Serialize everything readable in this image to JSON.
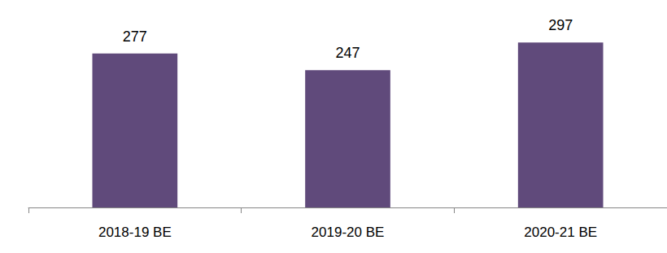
{
  "chart_data": {
    "type": "bar",
    "categories": [
      "2018-19 BE",
      "2019-20 BE",
      "2020-21 BE"
    ],
    "values": [
      277,
      247,
      297
    ],
    "color": "#604a7b",
    "ylim": [
      0,
      350
    ],
    "grid": false,
    "data_labels": true,
    "tick_labels": "x"
  }
}
